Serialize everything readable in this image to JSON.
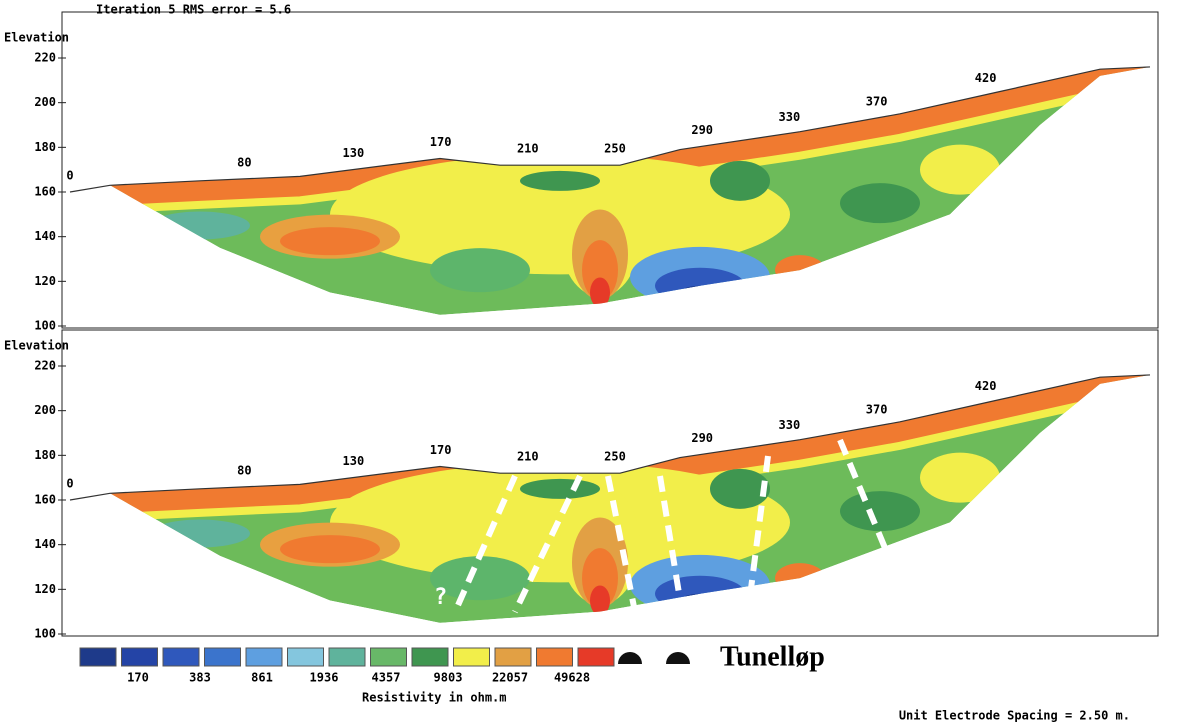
{
  "header": {
    "title": "Iteration 5 RMS error = 5.6"
  },
  "panels": [
    {
      "axis_label": "Elevation",
      "yticks": [
        100,
        120,
        140,
        160,
        180,
        200,
        220
      ],
      "stations": [
        0,
        80,
        130,
        170,
        210,
        250,
        290,
        330,
        370,
        420
      ]
    },
    {
      "axis_label": "Elevation",
      "yticks": [
        100,
        120,
        140,
        160,
        180,
        200,
        220
      ],
      "stations": [
        0,
        80,
        130,
        170,
        210,
        250,
        290,
        330,
        370,
        420
      ],
      "annotation": "?"
    }
  ],
  "legend": {
    "colors": [
      "#1e3a8a",
      "#2444a6",
      "#2f58bc",
      "#3b74cc",
      "#5e9fe0",
      "#84c6de",
      "#5fb39c",
      "#68b868",
      "#3f9650",
      "#f2ee4a",
      "#e2a044",
      "#f07a30",
      "#e63a28"
    ],
    "labels": [
      "170",
      "383",
      "861",
      "1936",
      "4357",
      "9803",
      "22057",
      "49628"
    ],
    "title": "Resistivity in ohm.m",
    "tunnel_label": "Tunelløp"
  },
  "footer": {
    "spacing": "Unit Electrode Spacing = 2.50 m."
  }
}
